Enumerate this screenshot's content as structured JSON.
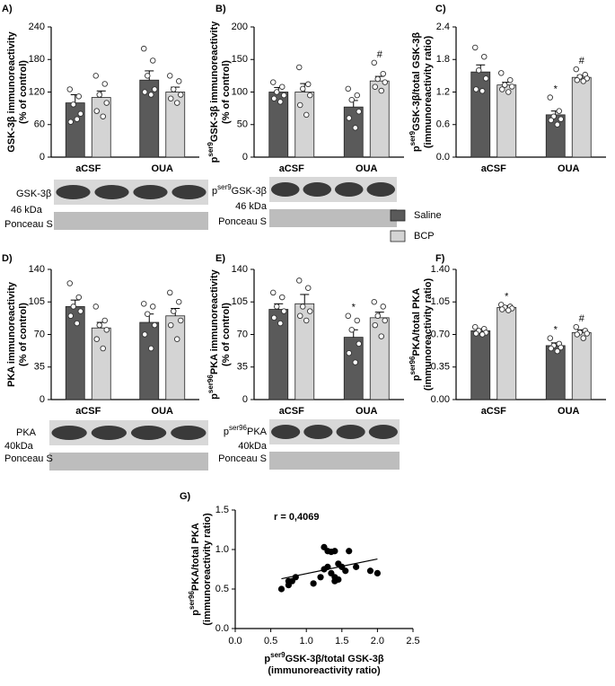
{
  "chart_data": [
    {
      "type": "bar",
      "panel": "A)",
      "categories": [
        "aCSF",
        "OUA"
      ],
      "ylabel": [
        "GSK-3β immunoreactivity",
        "(% of control)"
      ],
      "ylim": [
        0,
        240
      ],
      "yticks": [
        0,
        60,
        120,
        180,
        240
      ],
      "series": [
        {
          "name": "Saline",
          "color": "#5a5a5a",
          "values": [
            100,
            142
          ],
          "errors": [
            15,
            17
          ],
          "points": [
            [
              125,
              112,
              97,
              80,
              65,
              70
            ],
            [
              200,
              178,
              150,
              125,
              120,
              115
            ]
          ],
          "annotations": [
            null,
            null
          ]
        },
        {
          "name": "BCP",
          "color": "#d4d4d4",
          "values": [
            110,
            120
          ],
          "errors": [
            12,
            9
          ],
          "points": [
            [
              150,
              135,
              115,
              100,
              85,
              75
            ],
            [
              150,
              140,
              125,
              115,
              108,
              100
            ]
          ],
          "annotations": [
            null,
            null
          ]
        }
      ],
      "blot_labels": [
        "GSK-3β",
        "46 kDa",
        "Ponceau S"
      ]
    },
    {
      "type": "bar",
      "panel": "B)",
      "categories": [
        "aCSF",
        "OUA"
      ],
      "ylabel": [
        [
          {
            "t": "p"
          },
          {
            "t": "ser9",
            "sup": true
          },
          {
            "t": "GSK-3β immunoreactivity"
          }
        ],
        "(% of control)"
      ],
      "ylim": [
        0,
        200
      ],
      "yticks": [
        0,
        50,
        100,
        150,
        200
      ],
      "series": [
        {
          "name": "Saline",
          "color": "#5a5a5a",
          "values": [
            100,
            77
          ],
          "errors": [
            7,
            10
          ],
          "points": [
            [
              115,
              108,
              100,
              95,
              90,
              85
            ],
            [
              105,
              95,
              88,
              70,
              60,
              45
            ]
          ],
          "annotations": [
            null,
            null
          ]
        },
        {
          "name": "BCP",
          "color": "#d4d4d4",
          "values": [
            100,
            117
          ],
          "errors": [
            13,
            7
          ],
          "points": [
            [
              138,
              112,
              105,
              95,
              80,
              65
            ],
            [
              145,
              128,
              120,
              115,
              108,
              102
            ]
          ],
          "annotations": [
            null,
            "#"
          ]
        }
      ],
      "blot_labels": [
        [
          {
            "t": "p"
          },
          {
            "t": "ser9",
            "sup": true
          },
          {
            "t": "GSK-3β"
          }
        ],
        "46 kDa",
        "Ponceau S"
      ]
    },
    {
      "type": "bar",
      "panel": "C)",
      "categories": [
        "aCSF",
        "OUA"
      ],
      "ylabel": [
        [
          {
            "t": "p"
          },
          {
            "t": "ser9",
            "sup": true
          },
          {
            "t": "GSK-3β/total GSK-3β"
          }
        ],
        "(immunoreactivity ratio)"
      ],
      "ylim": [
        0,
        2.4
      ],
      "yticks": [
        {
          "value": 0,
          "label": "0.0"
        },
        0.6,
        1.2,
        1.8,
        2.4
      ],
      "legend": "right",
      "series": [
        {
          "name": "Saline",
          "color": "#5a5a5a",
          "values": [
            1.57,
            0.78
          ],
          "errors": [
            0.13,
            0.07
          ],
          "points": [
            [
              2.02,
              1.85,
              1.6,
              1.45,
              1.25,
              1.22
            ],
            [
              1.1,
              0.85,
              0.75,
              0.7,
              0.68,
              0.6
            ]
          ],
          "annotations": [
            null,
            "*"
          ]
        },
        {
          "name": "BCP",
          "color": "#d4d4d4",
          "values": [
            1.33,
            1.47
          ],
          "errors": [
            0.05,
            0.04
          ],
          "points": [
            [
              1.55,
              1.42,
              1.33,
              1.3,
              1.25,
              1.2
            ],
            [
              1.62,
              1.52,
              1.48,
              1.45,
              1.42,
              1.4
            ]
          ],
          "annotations": [
            null,
            "#"
          ]
        }
      ]
    },
    {
      "type": "bar",
      "panel": "D)",
      "categories": [
        "aCSF",
        "OUA"
      ],
      "ylabel": [
        "PKA immunoreactivity",
        "(% of control)"
      ],
      "ylim": [
        0,
        140
      ],
      "yticks": [
        0,
        35,
        70,
        105,
        140
      ],
      "series": [
        {
          "name": "Saline",
          "color": "#5a5a5a",
          "values": [
            100,
            83
          ],
          "errors": [
            7,
            9
          ],
          "points": [
            [
              125,
              110,
              100,
              95,
              90,
              82
            ],
            [
              103,
              100,
              92,
              80,
              70,
              55
            ]
          ],
          "annotations": [
            null,
            null
          ]
        },
        {
          "name": "BCP",
          "color": "#d4d4d4",
          "values": [
            77,
            90
          ],
          "errors": [
            6,
            8
          ],
          "points": [
            [
              100,
              85,
              80,
              75,
              65,
              55
            ],
            [
              115,
              105,
              95,
              85,
              80,
              65
            ]
          ],
          "annotations": [
            null,
            null
          ]
        }
      ],
      "blot_labels": [
        "PKA",
        "40kDa",
        "Ponceau S"
      ]
    },
    {
      "type": "bar",
      "panel": "E)",
      "categories": [
        "aCSF",
        "OUA"
      ],
      "ylabel": [
        [
          {
            "t": "p"
          },
          {
            "t": "ser96",
            "sup": true
          },
          {
            "t": "PKA immunoreactivity"
          }
        ],
        "(% of control)"
      ],
      "ylim": [
        0,
        140
      ],
      "yticks": [
        0,
        35,
        70,
        105,
        140
      ],
      "series": [
        {
          "name": "Saline",
          "color": "#5a5a5a",
          "values": [
            97,
            67
          ],
          "errors": [
            6,
            8
          ],
          "points": [
            [
              115,
              110,
              100,
              95,
              88,
              82
            ],
            [
              90,
              85,
              75,
              60,
              50,
              40
            ]
          ],
          "annotations": [
            null,
            "*"
          ]
        },
        {
          "name": "BCP",
          "color": "#d4d4d4",
          "values": [
            103,
            88
          ],
          "errors": [
            10,
            6
          ],
          "points": [
            [
              128,
              120,
              100,
              95,
              90,
              85
            ],
            [
              105,
              100,
              90,
              85,
              80,
              68
            ]
          ],
          "annotations": [
            null,
            null
          ]
        }
      ],
      "blot_labels": [
        [
          {
            "t": "p"
          },
          {
            "t": "ser96",
            "sup": true
          },
          {
            "t": "PKA"
          }
        ],
        "40kDa",
        "Ponceau S"
      ]
    },
    {
      "type": "bar",
      "panel": "F)",
      "categories": [
        "aCSF",
        "OUA"
      ],
      "ylabel": [
        [
          {
            "t": "p"
          },
          {
            "t": "ser96",
            "sup": true
          },
          {
            "t": "PKA/total PKA"
          }
        ],
        "(immunoreactivity ratio)"
      ],
      "ylim": [
        0,
        1.4
      ],
      "yticks": [
        {
          "value": 0,
          "label": "0.00"
        },
        0.35,
        {
          "value": 0.7,
          "label": "0.70"
        },
        1.05,
        {
          "value": 1.4,
          "label": "1.40"
        }
      ],
      "series": [
        {
          "name": "Saline",
          "color": "#5a5a5a",
          "values": [
            0.74,
            0.58
          ],
          "errors": [
            0.02,
            0.03
          ],
          "points": [
            [
              0.78,
              0.76,
              0.74,
              0.72,
              0.71,
              0.7
            ],
            [
              0.66,
              0.6,
              0.58,
              0.56,
              0.55,
              0.52
            ]
          ],
          "annotations": [
            null,
            "*"
          ]
        },
        {
          "name": "BCP",
          "color": "#d4d4d4",
          "values": [
            0.99,
            0.72
          ],
          "errors": [
            0.02,
            0.03
          ],
          "points": [
            [
              1.02,
              1.0,
              0.99,
              0.98,
              0.97,
              0.96
            ],
            [
              0.78,
              0.74,
              0.72,
              0.71,
              0.7,
              0.66
            ]
          ],
          "annotations": [
            "*",
            "#"
          ]
        }
      ]
    },
    {
      "type": "scatter",
      "panel": "G)",
      "annotation": "r = 0,4069",
      "ylabel": [
        [
          {
            "t": "p"
          },
          {
            "t": "ser96",
            "sup": true
          },
          {
            "t": "PKA/total PKA"
          }
        ],
        "(immunoreactivity ratio)"
      ],
      "xlabel": [
        [
          {
            "t": "p"
          },
          {
            "t": "ser9",
            "sup": true
          },
          {
            "t": "GSK-3β/total GSK-3β"
          }
        ],
        "(immunoreactivity ratio)"
      ],
      "xlim": [
        0,
        2.5
      ],
      "xticks": [
        {
          "value": 0,
          "label": "0.0"
        },
        0.5,
        {
          "value": 1,
          "label": "1.0"
        },
        1.5,
        {
          "value": 2,
          "label": "2.0"
        },
        2.5
      ],
      "ylim": [
        0,
        1.5
      ],
      "yticks": [
        {
          "value": 0,
          "label": "0.0"
        },
        0.5,
        {
          "value": 1,
          "label": "1.0"
        },
        1.5
      ],
      "color": "#000000",
      "x": [
        0.65,
        0.75,
        0.8,
        0.85,
        0.75,
        1.1,
        1.2,
        1.25,
        1.3,
        1.35,
        1.4,
        1.45,
        1.3,
        1.25,
        1.35,
        1.4,
        1.5,
        1.55,
        1.6,
        1.45,
        1.7,
        1.9,
        2.0,
        1.4
      ],
      "y": [
        0.5,
        0.55,
        0.6,
        0.65,
        0.6,
        0.57,
        0.65,
        1.03,
        0.98,
        0.97,
        0.98,
        0.82,
        0.78,
        0.75,
        0.7,
        0.65,
        0.78,
        0.73,
        0.98,
        0.62,
        0.78,
        0.73,
        0.7,
        0.6
      ],
      "fit_line": {
        "x": [
          0.65,
          2.0
        ],
        "y": [
          0.63,
          0.88
        ]
      }
    }
  ]
}
